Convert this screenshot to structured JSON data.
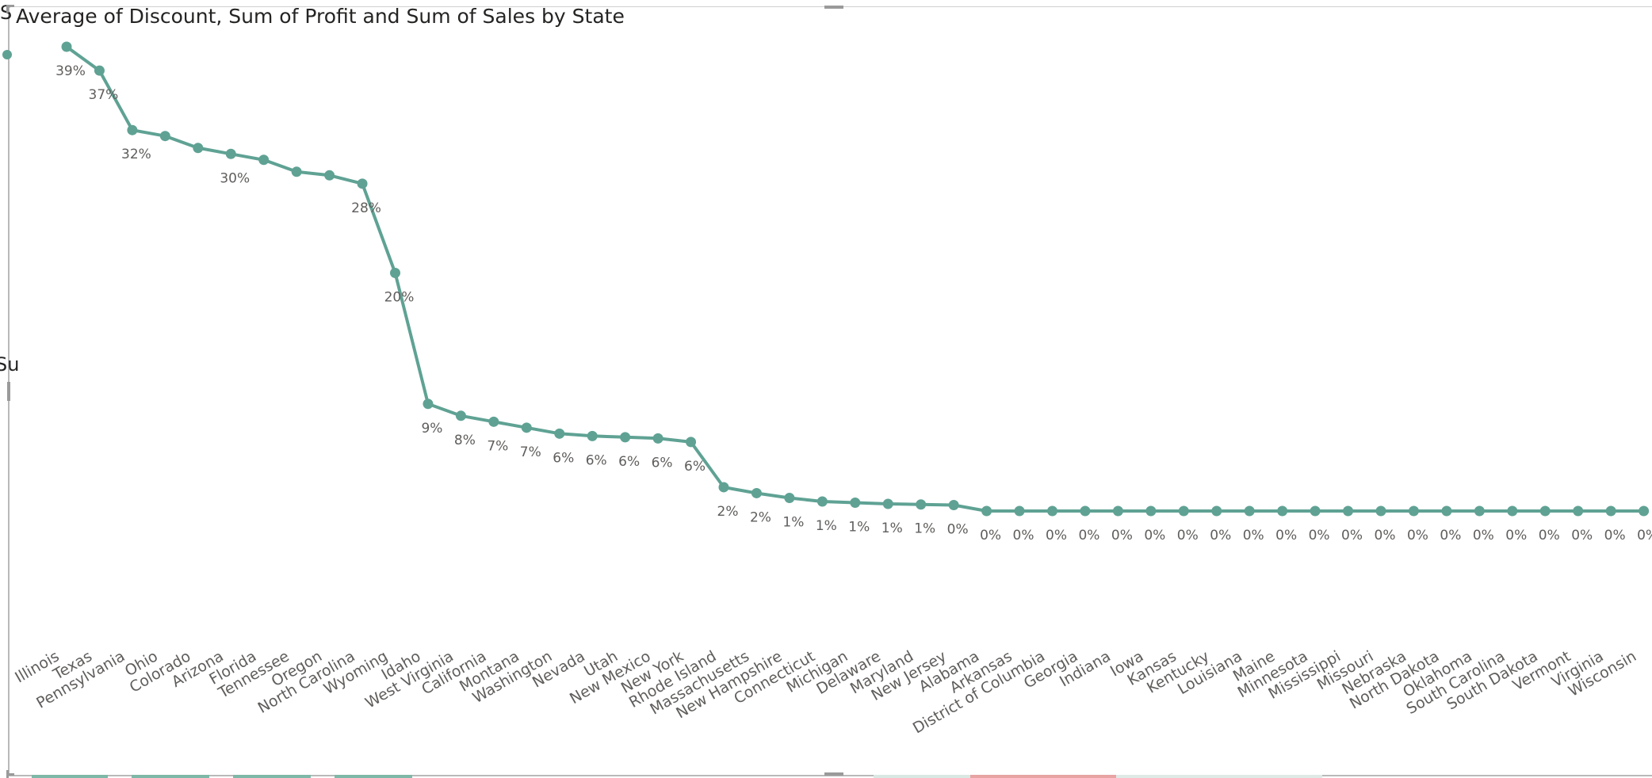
{
  "page": {
    "edge_fragment_top": "S",
    "edge_fragment_mid": "Su"
  },
  "colors": {
    "series": "#5fa294",
    "text": "#605e5c",
    "title": "#252423",
    "frame": "#b9b9b9"
  },
  "chart_data": {
    "type": "line",
    "title": "Average of Discount, Sum of Profit and Sum of Sales by State",
    "xlabel": "",
    "ylabel": "",
    "legend": "none",
    "grid": false,
    "ylim": [
      0,
      0.4
    ],
    "categories": [
      "Illinois",
      "Texas",
      "Pennsylvania",
      "Ohio",
      "Colorado",
      "Arizona",
      "Florida",
      "Tennessee",
      "Oregon",
      "North Carolina",
      "Wyoming",
      "Idaho",
      "West Virginia",
      "California",
      "Montana",
      "Washington",
      "Nevada",
      "Utah",
      "New Mexico",
      "New York",
      "Rhode Island",
      "Massachusetts",
      "New Hampshire",
      "Connecticut",
      "Michigan",
      "Delaware",
      "Maryland",
      "New Jersey",
      "Alabama",
      "Arkansas",
      "District of Columbia",
      "Georgia",
      "Indiana",
      "Iowa",
      "Kansas",
      "Kentucky",
      "Louisiana",
      "Maine",
      "Minnesota",
      "Mississippi",
      "Missouri",
      "Nebraska",
      "North Dakota",
      "Oklahoma",
      "South Carolina",
      "South Dakota",
      "Vermont",
      "Virginia",
      "Wisconsin"
    ],
    "series": [
      {
        "values": [
          0.39,
          0.37,
          0.32,
          0.315,
          0.305,
          0.3,
          0.295,
          0.285,
          0.282,
          0.275,
          0.2,
          0.09,
          0.08,
          0.075,
          0.07,
          0.065,
          0.063,
          0.062,
          0.061,
          0.058,
          0.02,
          0.015,
          0.011,
          0.008,
          0.007,
          0.006,
          0.0055,
          0.005,
          0.0,
          0,
          0,
          0,
          0,
          0,
          0,
          0,
          0,
          0,
          0,
          0,
          0,
          0,
          0,
          0,
          0,
          0,
          0,
          0,
          0
        ],
        "data_labels": [
          "39%",
          "37%",
          "32%",
          "",
          "",
          "30%",
          "",
          "",
          "",
          "28%",
          "20%",
          "9%",
          "8%",
          "7%",
          "7%",
          "6%",
          "6%",
          "6%",
          "6%",
          "6%",
          "2%",
          "2%",
          "1%",
          "1%",
          "1%",
          "1%",
          "1%",
          "0%",
          "0%",
          "0%",
          "0%",
          "0%",
          "0%",
          "0%",
          "0%",
          "0%",
          "0%",
          "0%",
          "0%",
          "0%",
          "0%",
          "0%",
          "0%",
          "0%",
          "0%",
          "0%",
          "0%",
          "0%",
          "0%"
        ]
      }
    ]
  }
}
